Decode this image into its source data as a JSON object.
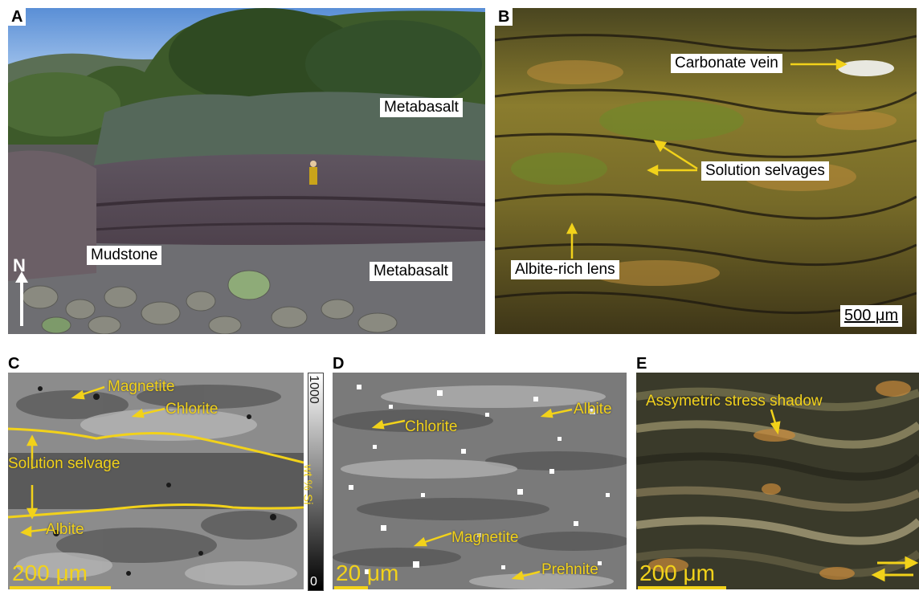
{
  "panels": {
    "A": {
      "letter": "A",
      "labels": {
        "metabasalt_top": "Metabasalt",
        "mudstone": "Mudstone",
        "metabasalt_bottom": "Metabasalt",
        "north": "N"
      }
    },
    "B": {
      "letter": "B",
      "labels": {
        "carbonate_vein": "Carbonate vein",
        "solution_selvages": "Solution selvages",
        "albite_lens": "Albite-rich lens"
      },
      "scale": "500 μm"
    },
    "C": {
      "letter": "C",
      "labels": {
        "magnetite": "Magnetite",
        "chlorite": "Chlorite",
        "solution_selvage": "Solution selvage",
        "albite": "Albite"
      },
      "scale": "200 μm",
      "colorbar": {
        "max": "1000",
        "min": "0",
        "unit": "wt % Si"
      }
    },
    "D": {
      "letter": "D",
      "labels": {
        "chlorite": "Chlorite",
        "albite": "Albite",
        "magnetite": "Magnetite",
        "prehnite": "Prehnite"
      },
      "scale": "20 μm"
    },
    "E": {
      "letter": "E",
      "labels": {
        "stress_shadow": "Assymetric stress shadow"
      },
      "scale": "200 μm"
    }
  },
  "colors": {
    "annotation": "#f2d21a",
    "label_bg": "#ffffff"
  }
}
